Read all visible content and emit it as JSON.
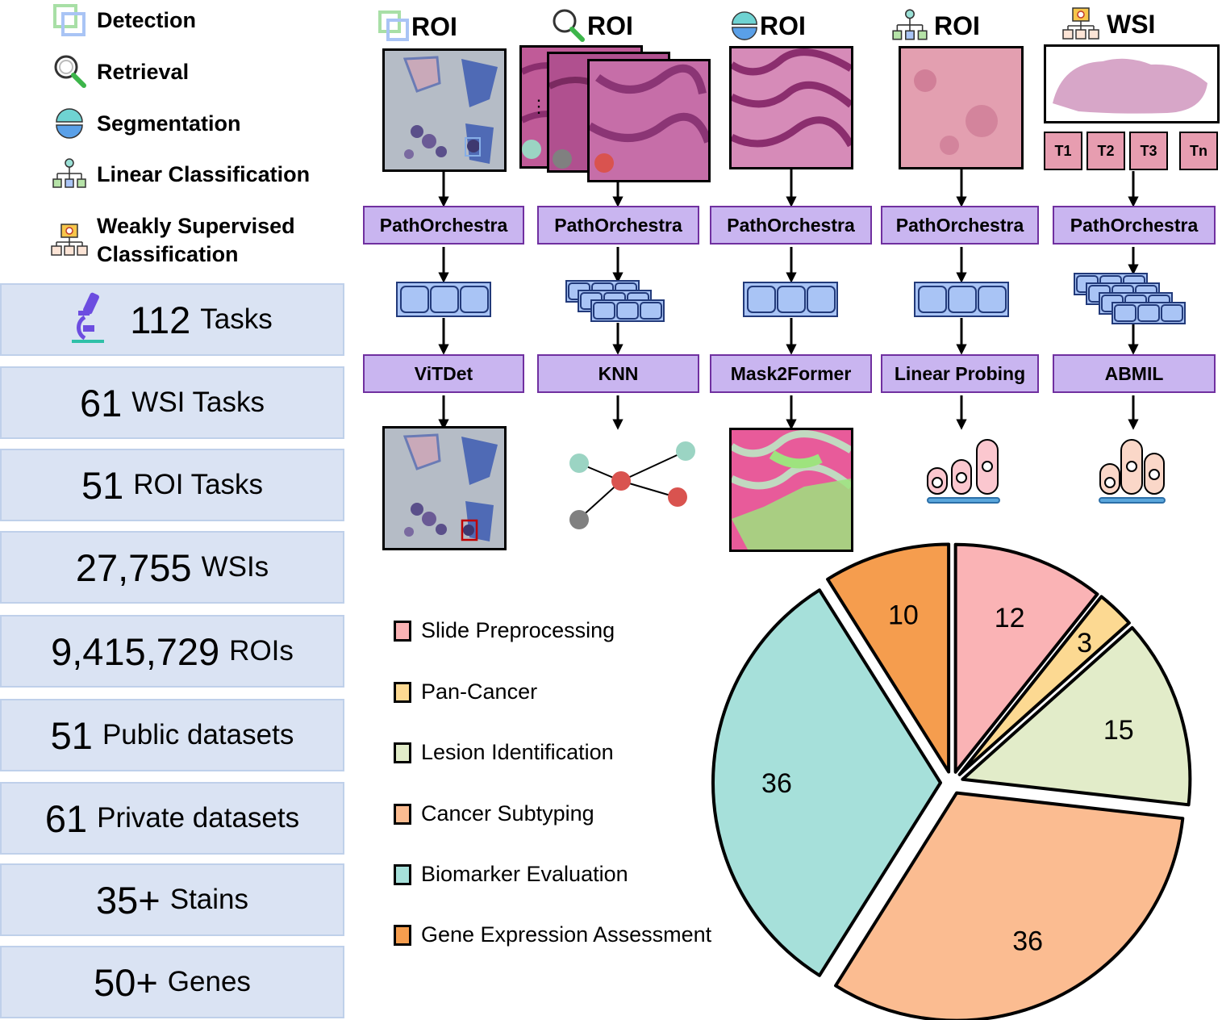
{
  "task_legend": [
    {
      "label": "Detection",
      "icon": "detection-icon"
    },
    {
      "label": "Retrieval",
      "icon": "retrieval-icon"
    },
    {
      "label": "Segmentation",
      "icon": "segmentation-icon"
    },
    {
      "label": "Linear Classification",
      "icon": "linear-classification-icon"
    },
    {
      "label_line1": "Weakly Supervised",
      "label_line2": "Classification",
      "icon": "weakly-supervised-icon"
    }
  ],
  "stats": [
    {
      "value": "112",
      "label": "Tasks"
    },
    {
      "value": "61",
      "label": "WSI Tasks"
    },
    {
      "value": "51",
      "label": "ROI Tasks"
    },
    {
      "value": "27,755",
      "label": "WSIs"
    },
    {
      "value": "9,415,729",
      "label": "ROIs"
    },
    {
      "value": "51",
      "label": "Public datasets"
    },
    {
      "value": "61",
      "label": "Private datasets"
    },
    {
      "value": "35+",
      "label": "Stains"
    },
    {
      "value": "50+",
      "label": "Genes"
    }
  ],
  "pipelines": [
    {
      "title": "ROI",
      "encoder": "PathOrchestra",
      "head": "ViTDet"
    },
    {
      "title": "ROI",
      "encoder": "PathOrchestra",
      "head": "KNN"
    },
    {
      "title": "ROI",
      "encoder": "PathOrchestra",
      "head": "Mask2Former"
    },
    {
      "title": "ROI",
      "encoder": "PathOrchestra",
      "head": "Linear Probing"
    },
    {
      "title": "WSI",
      "encoder": "PathOrchestra",
      "head": "ABMIL"
    }
  ],
  "tiles": [
    "T1",
    "T2",
    "T3",
    "Tn"
  ],
  "colors": {
    "stat_bg": "#dae3f3",
    "box_fill": "#c9b5f0",
    "box_border": "#7030a0",
    "token": "#a9c4f5"
  },
  "chart_data": {
    "type": "pie",
    "categories": [
      "Slide Preprocessing",
      "Pan-Cancer",
      "Lesion Identification",
      "Cancer Subtyping",
      "Biomarker Evaluation",
      "Gene Expression Assessment"
    ],
    "values": [
      12,
      3,
      15,
      36,
      36,
      10
    ],
    "colors": [
      "#fab3b5",
      "#fcd992",
      "#e2ecc9",
      "#fbbc91",
      "#a6e0da",
      "#f59d4e"
    ],
    "legend_position": "left",
    "exploded": true
  }
}
